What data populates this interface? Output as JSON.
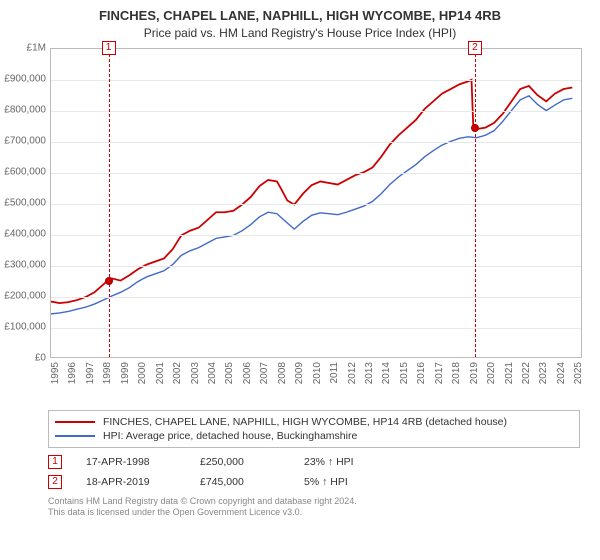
{
  "title": "FINCHES, CHAPEL LANE, NAPHILL, HIGH WYCOMBE, HP14 4RB",
  "subtitle": "Price paid vs. HM Land Registry's House Price Index (HPI)",
  "chart": {
    "type": "line",
    "xlim": [
      1995,
      2025.5
    ],
    "ylim": [
      0,
      1000000
    ],
    "y_ticks": [
      0,
      100000,
      200000,
      300000,
      400000,
      500000,
      600000,
      700000,
      800000,
      900000,
      1000000
    ],
    "y_tick_labels": [
      "£0",
      "£100,000",
      "£200,000",
      "£300,000",
      "£400,000",
      "£500,000",
      "£600,000",
      "£700,000",
      "£800,000",
      "£900,000",
      "£1M"
    ],
    "x_ticks": [
      1995,
      1996,
      1997,
      1998,
      1999,
      2000,
      2001,
      2002,
      2003,
      2004,
      2005,
      2006,
      2007,
      2008,
      2009,
      2010,
      2011,
      2012,
      2013,
      2014,
      2015,
      2016,
      2017,
      2018,
      2019,
      2020,
      2021,
      2022,
      2023,
      2024,
      2025
    ],
    "background_color": "#ffffff",
    "grid_color": "#e8e8e8",
    "border_color": "#bbbbbb",
    "tick_label_color": "#666666",
    "tick_fontsize": 10,
    "series": [
      {
        "name": "property",
        "label": "FINCHES, CHAPEL LANE, NAPHILL, HIGH WYCOMBE, HP14 4RB (detached house)",
        "color": "#cc0000",
        "line_width": 1.8,
        "points": [
          [
            1995.0,
            180000
          ],
          [
            1995.5,
            175000
          ],
          [
            1996.0,
            178000
          ],
          [
            1996.5,
            185000
          ],
          [
            1997.0,
            195000
          ],
          [
            1997.5,
            210000
          ],
          [
            1998.0,
            235000
          ],
          [
            1998.3,
            250000
          ],
          [
            1998.5,
            255000
          ],
          [
            1999.0,
            248000
          ],
          [
            1999.5,
            265000
          ],
          [
            2000.0,
            285000
          ],
          [
            2000.5,
            300000
          ],
          [
            2001.0,
            310000
          ],
          [
            2001.5,
            320000
          ],
          [
            2002.0,
            350000
          ],
          [
            2002.5,
            395000
          ],
          [
            2003.0,
            410000
          ],
          [
            2003.5,
            420000
          ],
          [
            2004.0,
            445000
          ],
          [
            2004.5,
            470000
          ],
          [
            2005.0,
            470000
          ],
          [
            2005.5,
            475000
          ],
          [
            2006.0,
            495000
          ],
          [
            2006.5,
            520000
          ],
          [
            2007.0,
            555000
          ],
          [
            2007.5,
            575000
          ],
          [
            2008.0,
            570000
          ],
          [
            2008.3,
            540000
          ],
          [
            2008.6,
            508000
          ],
          [
            2009.0,
            495000
          ],
          [
            2009.5,
            530000
          ],
          [
            2010.0,
            558000
          ],
          [
            2010.5,
            570000
          ],
          [
            2011.0,
            565000
          ],
          [
            2011.5,
            560000
          ],
          [
            2012.0,
            575000
          ],
          [
            2012.5,
            590000
          ],
          [
            2013.0,
            600000
          ],
          [
            2013.5,
            615000
          ],
          [
            2014.0,
            650000
          ],
          [
            2014.5,
            690000
          ],
          [
            2015.0,
            720000
          ],
          [
            2015.5,
            745000
          ],
          [
            2016.0,
            770000
          ],
          [
            2016.5,
            805000
          ],
          [
            2017.0,
            830000
          ],
          [
            2017.5,
            855000
          ],
          [
            2018.0,
            870000
          ],
          [
            2018.5,
            885000
          ],
          [
            2019.0,
            895000
          ],
          [
            2019.2,
            900000
          ],
          [
            2019.3,
            745000
          ],
          [
            2019.5,
            740000
          ],
          [
            2020.0,
            745000
          ],
          [
            2020.5,
            760000
          ],
          [
            2021.0,
            790000
          ],
          [
            2021.5,
            830000
          ],
          [
            2022.0,
            870000
          ],
          [
            2022.5,
            880000
          ],
          [
            2023.0,
            850000
          ],
          [
            2023.5,
            830000
          ],
          [
            2024.0,
            855000
          ],
          [
            2024.5,
            870000
          ],
          [
            2025.0,
            875000
          ]
        ]
      },
      {
        "name": "hpi",
        "label": "HPI: Average price, detached house, Buckinghamshire",
        "color": "#4169c8",
        "line_width": 1.4,
        "points": [
          [
            1995.0,
            140000
          ],
          [
            1995.5,
            143000
          ],
          [
            1996.0,
            148000
          ],
          [
            1996.5,
            155000
          ],
          [
            1997.0,
            162000
          ],
          [
            1997.5,
            172000
          ],
          [
            1998.0,
            185000
          ],
          [
            1998.5,
            198000
          ],
          [
            1999.0,
            210000
          ],
          [
            1999.5,
            225000
          ],
          [
            2000.0,
            245000
          ],
          [
            2000.5,
            260000
          ],
          [
            2001.0,
            270000
          ],
          [
            2001.5,
            280000
          ],
          [
            2002.0,
            300000
          ],
          [
            2002.5,
            330000
          ],
          [
            2003.0,
            345000
          ],
          [
            2003.5,
            355000
          ],
          [
            2004.0,
            370000
          ],
          [
            2004.5,
            385000
          ],
          [
            2005.0,
            390000
          ],
          [
            2005.5,
            395000
          ],
          [
            2006.0,
            410000
          ],
          [
            2006.5,
            430000
          ],
          [
            2007.0,
            455000
          ],
          [
            2007.5,
            470000
          ],
          [
            2008.0,
            465000
          ],
          [
            2008.5,
            440000
          ],
          [
            2009.0,
            415000
          ],
          [
            2009.5,
            440000
          ],
          [
            2010.0,
            460000
          ],
          [
            2010.5,
            468000
          ],
          [
            2011.0,
            465000
          ],
          [
            2011.5,
            462000
          ],
          [
            2012.0,
            470000
          ],
          [
            2012.5,
            480000
          ],
          [
            2013.0,
            490000
          ],
          [
            2013.5,
            505000
          ],
          [
            2014.0,
            530000
          ],
          [
            2014.5,
            560000
          ],
          [
            2015.0,
            585000
          ],
          [
            2015.5,
            605000
          ],
          [
            2016.0,
            625000
          ],
          [
            2016.5,
            650000
          ],
          [
            2017.0,
            670000
          ],
          [
            2017.5,
            688000
          ],
          [
            2018.0,
            700000
          ],
          [
            2018.5,
            710000
          ],
          [
            2019.0,
            715000
          ],
          [
            2019.5,
            712000
          ],
          [
            2020.0,
            720000
          ],
          [
            2020.5,
            735000
          ],
          [
            2021.0,
            765000
          ],
          [
            2021.5,
            800000
          ],
          [
            2022.0,
            835000
          ],
          [
            2022.5,
            848000
          ],
          [
            2023.0,
            820000
          ],
          [
            2023.5,
            800000
          ],
          [
            2024.0,
            818000
          ],
          [
            2024.5,
            835000
          ],
          [
            2025.0,
            840000
          ]
        ]
      }
    ],
    "markers": [
      {
        "id": "1",
        "x": 1998.3,
        "y": 250000
      },
      {
        "id": "2",
        "x": 2019.3,
        "y": 745000
      }
    ]
  },
  "legend": {
    "border_color": "#bbbbbb"
  },
  "events": [
    {
      "id": "1",
      "date": "17-APR-1998",
      "price": "£250,000",
      "pct": "23% ↑ HPI"
    },
    {
      "id": "2",
      "date": "18-APR-2019",
      "price": "£745,000",
      "pct": "5% ↑ HPI"
    }
  ],
  "footer_line1": "Contains HM Land Registry data © Crown copyright and database right 2024.",
  "footer_line2": "This data is licensed under the Open Government Licence v3.0."
}
